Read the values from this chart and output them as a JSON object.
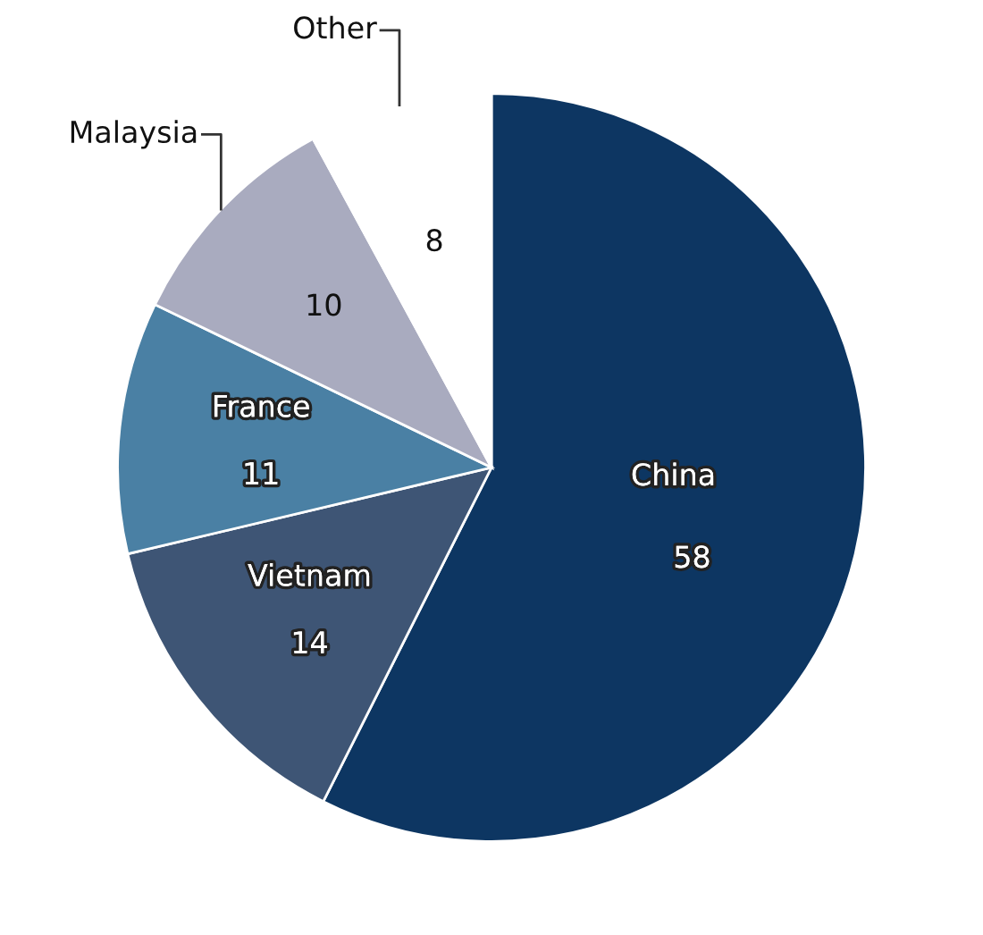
{
  "chart_data": {
    "type": "pie",
    "categories": [
      "China",
      "Vietnam",
      "France",
      "Malaysia",
      "Other"
    ],
    "values": [
      58,
      14,
      11,
      10,
      8
    ],
    "colors": [
      "#0d3662",
      "#3e5575",
      "#4a80a4",
      "#a9abbf",
      "#ffffff"
    ],
    "data_labels": true
  }
}
